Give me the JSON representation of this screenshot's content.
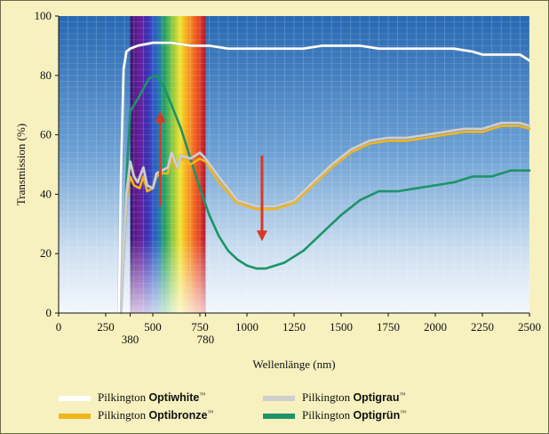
{
  "chart_data": {
    "type": "line",
    "xlabel": "Wellenlänge (nm)",
    "ylabel": "Transmission (%)",
    "xlim": [
      0,
      2500
    ],
    "ylim": [
      0,
      100
    ],
    "x_ticks": [
      0,
      250,
      500,
      750,
      1000,
      1250,
      1500,
      1750,
      2000,
      2250,
      2500
    ],
    "x_extra_ticks": [
      380,
      780
    ],
    "y_ticks": [
      0,
      20,
      40,
      60,
      80,
      100
    ],
    "visible_spectrum": [
      380,
      780
    ],
    "grid": true,
    "series": [
      {
        "name": "Pilkington Optiwhite™",
        "color": "#ffffff",
        "points": [
          [
            320,
            0
          ],
          [
            330,
            45
          ],
          [
            345,
            82
          ],
          [
            360,
            88
          ],
          [
            380,
            89
          ],
          [
            420,
            90
          ],
          [
            500,
            91
          ],
          [
            600,
            91
          ],
          [
            700,
            90
          ],
          [
            800,
            90
          ],
          [
            900,
            89
          ],
          [
            1000,
            89
          ],
          [
            1100,
            89
          ],
          [
            1200,
            89
          ],
          [
            1300,
            89
          ],
          [
            1400,
            90
          ],
          [
            1500,
            90
          ],
          [
            1600,
            90
          ],
          [
            1700,
            89
          ],
          [
            1800,
            89
          ],
          [
            1900,
            89
          ],
          [
            2000,
            89
          ],
          [
            2100,
            89
          ],
          [
            2200,
            88
          ],
          [
            2250,
            87
          ],
          [
            2300,
            87
          ],
          [
            2400,
            87
          ],
          [
            2450,
            87
          ],
          [
            2500,
            85
          ]
        ]
      },
      {
        "name": "Pilkington Optibronze™",
        "color": "#f3b51d",
        "points": [
          [
            330,
            0
          ],
          [
            345,
            20
          ],
          [
            360,
            38
          ],
          [
            380,
            46
          ],
          [
            400,
            43
          ],
          [
            430,
            42
          ],
          [
            450,
            46
          ],
          [
            470,
            41
          ],
          [
            500,
            42
          ],
          [
            520,
            46
          ],
          [
            550,
            47
          ],
          [
            580,
            47
          ],
          [
            600,
            53
          ],
          [
            620,
            49
          ],
          [
            650,
            52
          ],
          [
            700,
            50
          ],
          [
            750,
            52
          ],
          [
            780,
            51
          ],
          [
            850,
            44
          ],
          [
            950,
            37
          ],
          [
            1050,
            35
          ],
          [
            1150,
            35
          ],
          [
            1250,
            37
          ],
          [
            1350,
            43
          ],
          [
            1450,
            49
          ],
          [
            1550,
            54
          ],
          [
            1650,
            57
          ],
          [
            1750,
            58
          ],
          [
            1850,
            58
          ],
          [
            1950,
            59
          ],
          [
            2050,
            60
          ],
          [
            2150,
            61
          ],
          [
            2250,
            61
          ],
          [
            2350,
            63
          ],
          [
            2450,
            63
          ],
          [
            2500,
            62
          ]
        ]
      },
      {
        "name": "Pilkington Optigrau™",
        "color": "#cfcfcf",
        "points": [
          [
            330,
            0
          ],
          [
            345,
            22
          ],
          [
            360,
            40
          ],
          [
            380,
            51
          ],
          [
            400,
            46
          ],
          [
            420,
            44
          ],
          [
            450,
            49
          ],
          [
            470,
            43
          ],
          [
            500,
            42
          ],
          [
            520,
            47
          ],
          [
            550,
            48
          ],
          [
            580,
            49
          ],
          [
            600,
            54
          ],
          [
            630,
            49
          ],
          [
            650,
            53
          ],
          [
            700,
            52
          ],
          [
            750,
            54
          ],
          [
            780,
            52
          ],
          [
            850,
            46
          ],
          [
            950,
            38
          ],
          [
            1050,
            36
          ],
          [
            1150,
            36
          ],
          [
            1250,
            38
          ],
          [
            1350,
            44
          ],
          [
            1450,
            50
          ],
          [
            1550,
            55
          ],
          [
            1650,
            58
          ],
          [
            1750,
            59
          ],
          [
            1850,
            59
          ],
          [
            1950,
            60
          ],
          [
            2050,
            61
          ],
          [
            2150,
            62
          ],
          [
            2250,
            62
          ],
          [
            2350,
            64
          ],
          [
            2450,
            64
          ],
          [
            2500,
            63
          ]
        ]
      },
      {
        "name": "Pilkington Optigrün™",
        "color": "#1c9468",
        "points": [
          [
            330,
            0
          ],
          [
            345,
            20
          ],
          [
            360,
            45
          ],
          [
            380,
            68
          ],
          [
            420,
            72
          ],
          [
            480,
            79
          ],
          [
            520,
            80
          ],
          [
            560,
            76
          ],
          [
            600,
            70
          ],
          [
            650,
            62
          ],
          [
            700,
            52
          ],
          [
            750,
            42
          ],
          [
            800,
            33
          ],
          [
            850,
            26
          ],
          [
            900,
            21
          ],
          [
            950,
            18
          ],
          [
            1000,
            16
          ],
          [
            1050,
            15
          ],
          [
            1100,
            15
          ],
          [
            1150,
            16
          ],
          [
            1200,
            17
          ],
          [
            1300,
            21
          ],
          [
            1400,
            27
          ],
          [
            1500,
            33
          ],
          [
            1600,
            38
          ],
          [
            1700,
            41
          ],
          [
            1800,
            41
          ],
          [
            1900,
            42
          ],
          [
            2000,
            43
          ],
          [
            2100,
            44
          ],
          [
            2200,
            46
          ],
          [
            2300,
            46
          ],
          [
            2400,
            48
          ],
          [
            2500,
            48
          ]
        ]
      }
    ],
    "annotations": [
      {
        "type": "arrow",
        "direction": "up",
        "x": 540,
        "y_from": 36,
        "y_to": 66,
        "color": "#d63a23"
      },
      {
        "type": "arrow",
        "direction": "down",
        "x": 1080,
        "y_from": 53,
        "y_to": 26,
        "color": "#d63a23"
      }
    ]
  },
  "legend": [
    {
      "brand": "Pilkington",
      "product": "Optiwhite",
      "tm": "™"
    },
    {
      "brand": "Pilkington",
      "product": "Optibronze",
      "tm": "™"
    },
    {
      "brand": "Pilkington",
      "product": "Optigrau",
      "tm": "™"
    },
    {
      "brand": "Pilkington",
      "product": "Optigrün",
      "tm": "™"
    }
  ]
}
